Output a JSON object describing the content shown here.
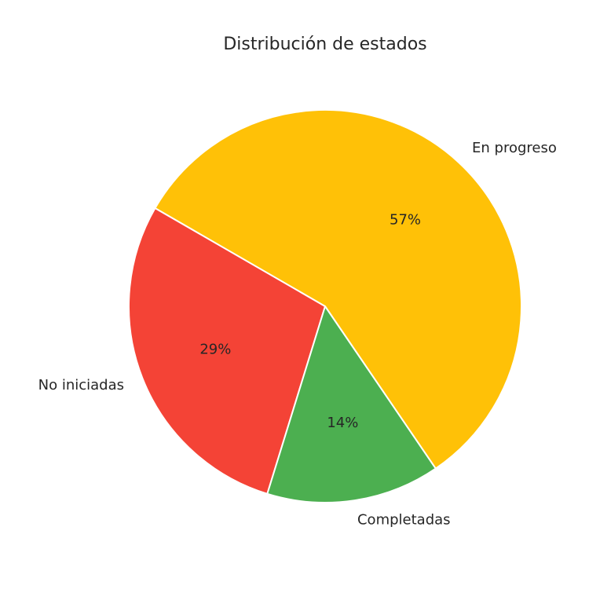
{
  "chart_data": {
    "type": "pie",
    "title": "Distribución de estados",
    "start_angle_deg": 150,
    "direction": "counterclockwise",
    "slices": [
      {
        "label": "No iniciadas",
        "value": 2,
        "percent_label": "29%",
        "color": "#f44336"
      },
      {
        "label": "Completadas",
        "value": 1,
        "percent_label": "14%",
        "color": "#4caf50"
      },
      {
        "label": "En progreso",
        "value": 4,
        "percent_label": "57%",
        "color": "#ffc107"
      }
    ]
  }
}
